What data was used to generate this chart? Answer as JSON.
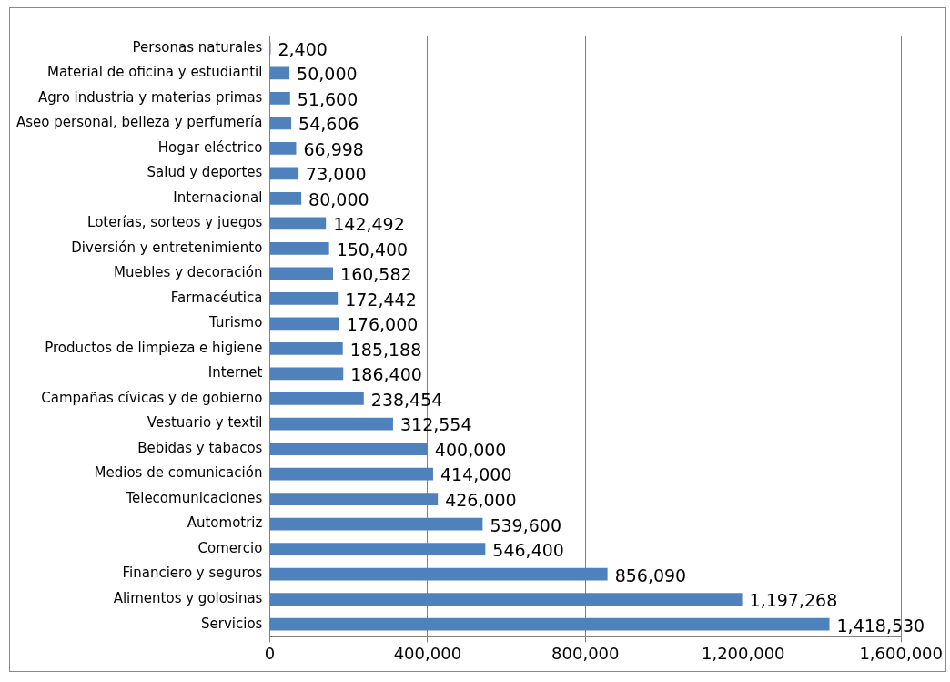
{
  "chart_data": {
    "type": "bar",
    "orientation": "horizontal",
    "categories": [
      "Personas naturales",
      "Material de oficina y estudiantil",
      "Agro industria y materias primas",
      "Aseo personal, belleza y perfumería",
      "Hogar eléctrico",
      "Salud y deportes",
      "Internacional",
      "Loterías, sorteos y juegos",
      "Diversión y entretenimiento",
      "Muebles y decoración",
      "Farmacéutica",
      "Turismo",
      "Productos de limpieza e higiene",
      "Internet",
      "Campañas cívicas y de gobierno",
      "Vestuario y textil",
      "Bebidas y tabacos",
      "Medios de comunicación",
      "Telecomunicaciones",
      "Automotriz",
      "Comercio",
      "Financiero y seguros",
      "Alimentos y golosinas",
      "Servicios"
    ],
    "values": [
      2400,
      50000,
      51600,
      54606,
      66998,
      73000,
      80000,
      142492,
      150400,
      160582,
      172442,
      176000,
      185188,
      186400,
      238454,
      312554,
      400000,
      414000,
      426000,
      539600,
      546400,
      856090,
      1197268,
      1418530
    ],
    "color": "#4f81bd",
    "xlim": [
      0,
      1600000
    ],
    "xticks": [
      0,
      {
        "value": 400000,
        "label": "400,000"
      },
      {
        "value": 800000,
        "label": "800,000"
      },
      {
        "value": 1200000,
        "label": "1,200,000"
      },
      {
        "value": 1600000,
        "label": "1,600,000"
      }
    ],
    "value_labels": [
      "2,400",
      "50,000",
      "51,600",
      "54,606",
      "66,998",
      "73,000",
      "80,000",
      "142,492",
      "150,400",
      "160,582",
      "172,442",
      "176,000",
      "185,188",
      "186,400",
      "238,454",
      "312,554",
      "400,000",
      "414,000",
      "426,000",
      "539,600",
      "546,400",
      "856,090",
      "1,197,268",
      "1,418,530"
    ],
    "grid": "x",
    "legend": false
  }
}
